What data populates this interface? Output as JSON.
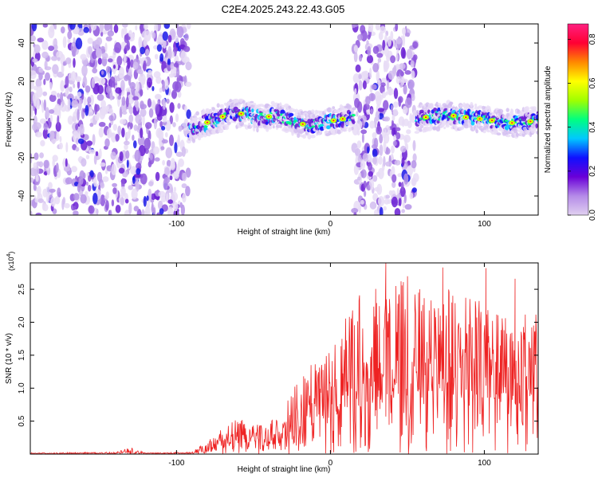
{
  "title": "C2E4.2025.243.22.43.G05",
  "colors": {
    "series": "#ee2222",
    "frame": "#000000",
    "colorbar_stops": [
      "#e0d0f0",
      "#b58be8",
      "#6a00d8",
      "#1010ff",
      "#00c8ff",
      "#00ff80",
      "#a0ff00",
      "#ffff00",
      "#ff8800",
      "#ff0033",
      "#ff2080"
    ]
  },
  "chart_data": [
    {
      "type": "heatmap",
      "name": "spectrogram",
      "xlabel": "Height of straight line (km)",
      "ylabel": "Frequency (Hz)",
      "xlim": [
        -195,
        135
      ],
      "ylim": [
        -50,
        50
      ],
      "x_ticks": [
        -100,
        0,
        100
      ],
      "x_tick_labels": [
        "-100",
        "0",
        "100"
      ],
      "y_ticks": [
        -40,
        -20,
        0,
        20,
        40
      ],
      "y_tick_labels": [
        "-40",
        "-20",
        "0",
        "20",
        "40"
      ],
      "noise_regions_x": [
        [
          -195,
          -92
        ],
        [
          15,
          56
        ]
      ],
      "strong_spots_x": [
        -80,
        -70,
        -58,
        -40,
        -18,
        2,
        8,
        62,
        80,
        88,
        97,
        105,
        118,
        130
      ],
      "ridge": {
        "x": [
          -92,
          -85,
          -75,
          -65,
          -55,
          -45,
          -35,
          -25,
          -15,
          -5,
          5,
          15,
          56,
          60,
          70,
          80,
          90,
          100,
          110,
          120,
          130,
          135
        ],
        "freq": [
          -6,
          -3,
          0,
          3,
          3,
          1,
          2,
          -1,
          -3,
          -2,
          0,
          1,
          0,
          1,
          2,
          2,
          1,
          0,
          -1,
          -2,
          -1,
          0
        ]
      },
      "colorbar": {
        "label": "Normalized spectral amplitude",
        "range": [
          0.0,
          0.87
        ],
        "ticks": [
          0.0,
          0.2,
          0.4,
          0.6,
          0.8
        ],
        "tick_labels": [
          "0.0",
          "0.2",
          "0.4",
          "0.6",
          "0.8"
        ]
      }
    },
    {
      "type": "line",
      "name": "snr",
      "xlabel": "Height of straight line (km)",
      "ylabel": "SNR (10 * v/v)",
      "y_multiplier": "(x10",
      "y_multiplier_exp": "4",
      "y_multiplier_close": ")",
      "xlim": [
        -195,
        135
      ],
      "ylim": [
        0,
        2.9
      ],
      "x_ticks": [
        -100,
        0,
        100
      ],
      "x_tick_labels": [
        "-100",
        "0",
        "100"
      ],
      "y_ticks": [
        0.5,
        1.0,
        1.5,
        2.0,
        2.5
      ],
      "y_tick_labels": [
        "0.5",
        "1.0",
        "1.5",
        "2.0",
        "2.5"
      ],
      "envelope": {
        "x": [
          -195,
          -140,
          -130,
          -120,
          -90,
          -80,
          -70,
          -60,
          -50,
          -40,
          -30,
          -20,
          -10,
          0,
          10,
          20,
          30,
          40,
          50,
          60,
          70,
          80,
          90,
          100,
          110,
          120,
          135
        ],
        "base": [
          0.01,
          0.01,
          0.03,
          0.01,
          0.01,
          0.04,
          0.12,
          0.18,
          0.15,
          0.12,
          0.2,
          0.35,
          0.45,
          0.55,
          0.65,
          0.7,
          0.8,
          0.9,
          0.9,
          0.95,
          0.95,
          0.9,
          0.9,
          0.85,
          0.8,
          0.75,
          0.85
        ],
        "peak": [
          0.02,
          0.03,
          0.1,
          0.02,
          0.03,
          0.2,
          0.4,
          0.55,
          0.5,
          0.45,
          0.75,
          1.15,
          1.45,
          1.6,
          2.1,
          2.45,
          2.6,
          2.7,
          2.7,
          2.55,
          2.5,
          2.5,
          2.4,
          2.3,
          2.2,
          2.1,
          2.2
        ]
      },
      "peaks": [
        {
          "x": 36,
          "y": 2.9
        },
        {
          "x": 73,
          "y": 2.83
        },
        {
          "x": 101,
          "y": 2.82
        },
        {
          "x": 120,
          "y": 2.66
        },
        {
          "x": 58,
          "y": 2.5
        }
      ]
    }
  ]
}
